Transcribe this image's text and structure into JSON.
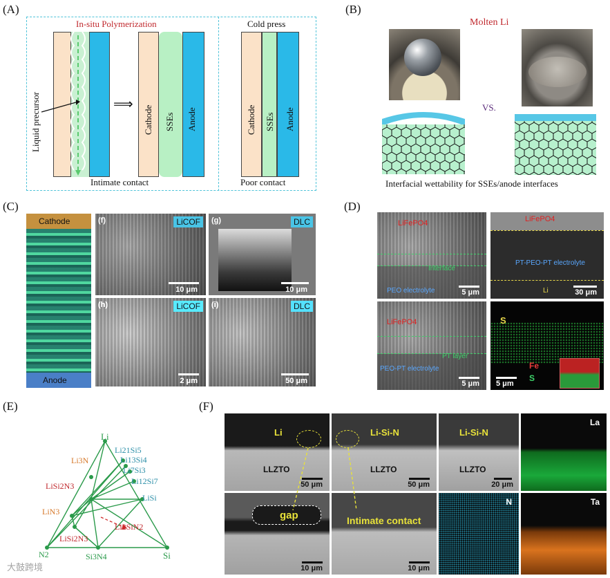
{
  "panelA": {
    "label": "(A)",
    "left_title": "In-situ Polymerization",
    "right_title": "Cold press",
    "liquid_precursor": "Liquid precursor",
    "cathode": "Cathode",
    "sses": "SSEs",
    "anode": "Anode",
    "intimate": "Intimate contact",
    "poor": "Poor contact",
    "arrow": "⟹"
  },
  "panelB": {
    "label": "(B)",
    "molten": "Molten Li",
    "vs": "VS.",
    "caption": "Interfacial wettability for SSEs/anode interfaces"
  },
  "panelC": {
    "label": "(C)",
    "cathode": "Cathode",
    "anode": "Anode",
    "f_label": "(f)",
    "g_label": "(g)",
    "h_label": "(h)",
    "i_label": "(i)",
    "licof": "LiCOF",
    "dlc": "DLC",
    "s1": "10 μm",
    "s2": "10 μm",
    "s3": "2 μm",
    "s4": "50 μm"
  },
  "panelD": {
    "label": "(D)",
    "lifepo4": "LiFePO4",
    "interface": "Interface",
    "peo": "PEO electrolyte",
    "s5a": "5 μm",
    "pt_peo": "PT-PEO-PT electrolyte",
    "li": "Li",
    "s30": "30 μm",
    "pt_layer": "PT layer",
    "peo_pt": "PEO-PT electrolyte",
    "s5b": "5 μm",
    "S": "S",
    "Fe": "Fe",
    "S2": "S",
    "s5c": "5 μm"
  },
  "panelE": {
    "label": "(E)",
    "Li": "Li",
    "Li21Si5": "Li21Si5",
    "Li13Si4": "Li13Si4",
    "Li7Si3": "Li7Si3",
    "Li12Si7": "Li12Si7",
    "LiSi": "LiSi",
    "Li3N": "Li3N",
    "LiSi2N3a": "LiSi2N3",
    "LiN3": "LiN3",
    "LiSi2N3b": "LiSi2N3",
    "Li2SiN2": "Li2SiN2",
    "N2": "N2",
    "Si3N4": "Si3N4",
    "Si": "Si"
  },
  "panelF": {
    "label": "(F)",
    "li": "Li",
    "lisin1": "Li-Si-N",
    "lisin2": "Li-Si-N",
    "llzto1": "LLZTO",
    "llzto2": "LLZTO",
    "llzto3": "LLZTO",
    "La": "La",
    "gap": "gap",
    "intimate": "Intimate contact",
    "N": "N",
    "Ta": "Ta",
    "s50a": "50 μm",
    "s50b": "50 μm",
    "s20": "20 μm",
    "s10a": "10 μm",
    "s10b": "10 μm"
  },
  "watermark": "大鼓跨境"
}
